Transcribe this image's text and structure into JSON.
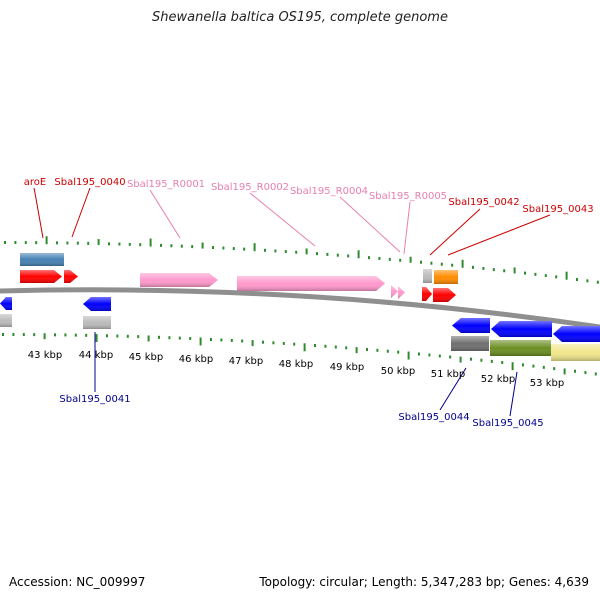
{
  "title": "Shewanella baltica OS195, complete genome",
  "footer": {
    "accession": "Accession: NC_009997",
    "summary": "Topology: circular; Length: 5,347,283 bp; Genes: 4,639"
  },
  "colors": {
    "background": "#ffffff",
    "backbone": "#8f8f8f",
    "tick": "#2e8b2e",
    "label_forward": "#cc0000",
    "label_rna": "#e87fb0",
    "label_reverse": "#00008b",
    "gene_red": "#ff0000",
    "gene_pink": "#ff99cc",
    "gene_blue": "#0000ff",
    "gene_steel": "#4682b4",
    "gene_orange": "#ff8c00",
    "gene_gray": "#bbbbbb",
    "gene_darkgray": "#707070",
    "gene_olive": "#6b8e23",
    "gene_khaki": "#f0e68c"
  },
  "scale_labels": [
    "43 kbp",
    "44 kbp",
    "45 kbp",
    "46 kbp",
    "47 kbp",
    "48 kbp",
    "49 kbp",
    "50 kbp",
    "51 kbp",
    "52 kbp",
    "53 kbp"
  ],
  "forward_labels": [
    {
      "text": "aroE",
      "kind": "protein"
    },
    {
      "text": "Sbal195_0040",
      "kind": "protein"
    },
    {
      "text": "Sbal195_R0001",
      "kind": "rna"
    },
    {
      "text": "Sbal195_R0002",
      "kind": "rna"
    },
    {
      "text": "Sbal195_R0004",
      "kind": "rna"
    },
    {
      "text": "Sbal195_R0005",
      "kind": "rna"
    },
    {
      "text": "Sbal195_0042",
      "kind": "protein"
    },
    {
      "text": "Sbal195_0043",
      "kind": "protein"
    }
  ],
  "reverse_labels": [
    {
      "text": "Sbal195_0041"
    },
    {
      "text": "Sbal195_0044"
    },
    {
      "text": "Sbal195_0045"
    }
  ]
}
